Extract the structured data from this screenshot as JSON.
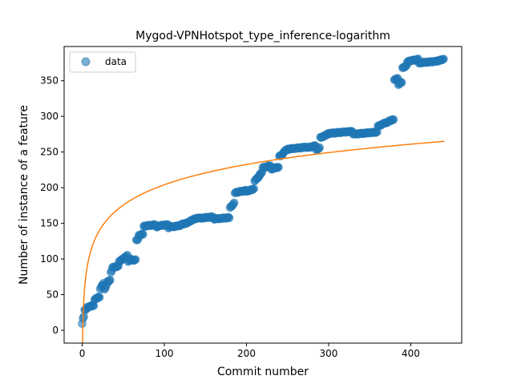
{
  "chart_data": {
    "type": "scatter",
    "title": "Mygod-VPNHotspot_type_inference-logarithm",
    "xlabel": "Commit number",
    "ylabel": "Number of instance of a feature",
    "xlim": [
      -22,
      462
    ],
    "ylim": [
      -18,
      398
    ],
    "x_ticks": [
      0,
      100,
      200,
      300,
      400
    ],
    "y_ticks": [
      0,
      50,
      100,
      150,
      200,
      250,
      300,
      350
    ],
    "grid": false,
    "legend": {
      "position": "top-left",
      "entries": [
        "data"
      ]
    },
    "colors": {
      "data": "#1f77b4",
      "fit": "#ff7f0e"
    },
    "series": [
      {
        "name": "data",
        "kind": "scatter",
        "segments": [
          [
            0,
            1,
            10,
            10
          ],
          [
            1,
            3,
            17,
            19
          ],
          [
            3,
            6,
            28,
            30
          ],
          [
            6,
            15,
            32,
            35
          ],
          [
            15,
            22,
            43,
            47
          ],
          [
            22,
            27,
            58,
            66
          ],
          [
            27,
            31,
            57,
            65
          ],
          [
            31,
            35,
            68,
            70
          ],
          [
            35,
            37,
            82,
            84
          ],
          [
            37,
            45,
            88,
            90
          ],
          [
            45,
            51,
            96,
            101
          ],
          [
            51,
            56,
            101,
            105
          ],
          [
            56,
            61,
            97,
            100
          ],
          [
            61,
            66,
            98,
            99
          ],
          [
            66,
            69,
            126,
            128
          ],
          [
            69,
            75,
            133,
            135
          ],
          [
            75,
            90,
            146,
            148
          ],
          [
            90,
            95,
            145,
            146
          ],
          [
            95,
            105,
            147,
            148
          ],
          [
            105,
            110,
            144,
            146
          ],
          [
            110,
            120,
            145,
            147
          ],
          [
            120,
            130,
            148,
            151
          ],
          [
            130,
            135,
            152,
            155
          ],
          [
            135,
            142,
            155,
            158
          ],
          [
            142,
            160,
            157,
            159
          ],
          [
            160,
            180,
            156,
            158
          ],
          [
            180,
            186,
            172,
            178
          ],
          [
            186,
            200,
            193,
            196
          ],
          [
            200,
            210,
            195,
            198
          ],
          [
            210,
            216,
            210,
            215
          ],
          [
            216,
            220,
            218,
            222
          ],
          [
            220,
            230,
            228,
            231
          ],
          [
            230,
            240,
            226,
            229
          ],
          [
            240,
            245,
            244,
            246
          ],
          [
            245,
            250,
            250,
            253
          ],
          [
            250,
            275,
            254,
            257
          ],
          [
            275,
            285,
            256,
            259
          ],
          [
            285,
            290,
            253,
            256
          ],
          [
            290,
            300,
            270,
            275
          ],
          [
            300,
            330,
            276,
            279
          ],
          [
            330,
            360,
            275,
            278
          ],
          [
            360,
            370,
            286,
            291
          ],
          [
            370,
            380,
            291,
            296
          ],
          [
            380,
            385,
            351,
            353
          ],
          [
            385,
            390,
            345,
            348
          ],
          [
            390,
            396,
            368,
            371
          ],
          [
            396,
            410,
            377,
            380
          ],
          [
            410,
            430,
            375,
            377
          ],
          [
            430,
            441,
            377,
            380
          ]
        ]
      },
      {
        "name": "fit",
        "kind": "line",
        "function": "log",
        "x_range": [
          0,
          441
        ],
        "anchor_points": [
          [
            1,
            15
          ],
          [
            441,
            265
          ]
        ]
      }
    ]
  }
}
